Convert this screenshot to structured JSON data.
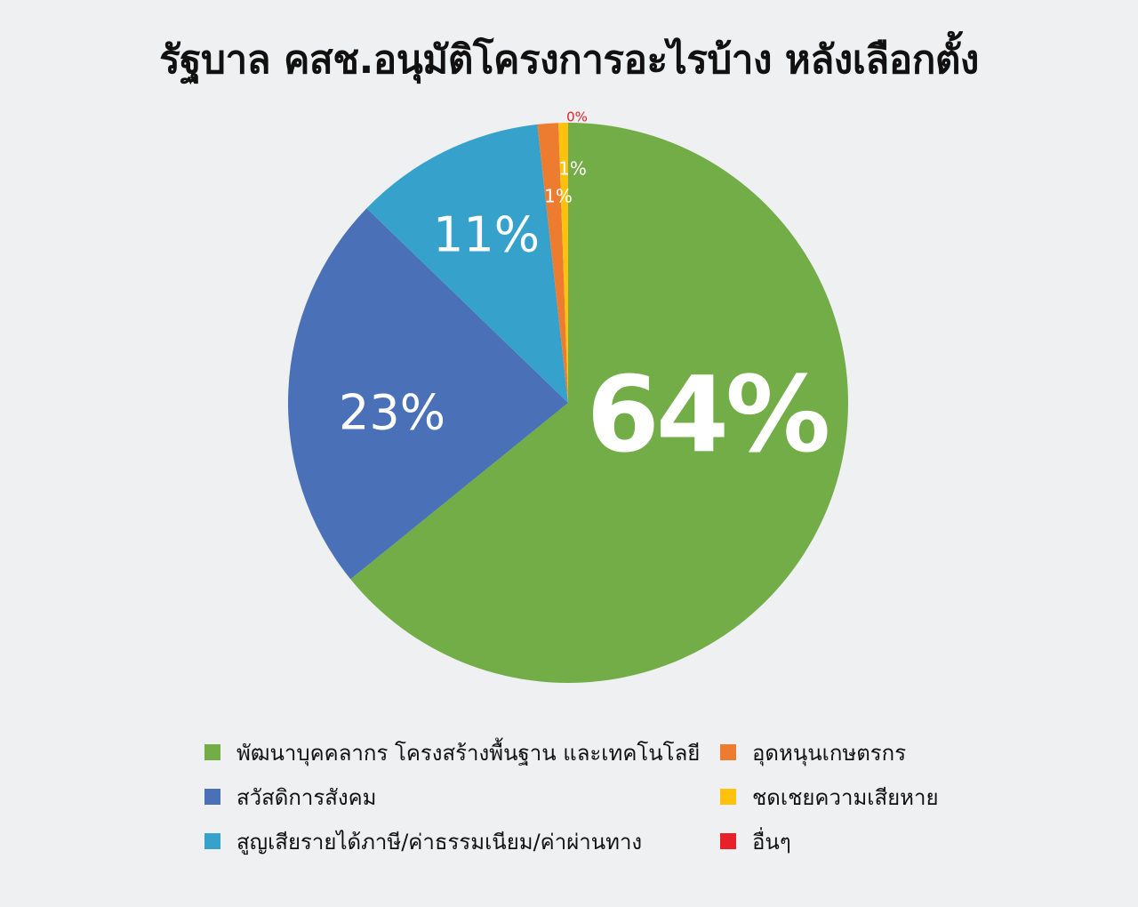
{
  "title": "รัฐบาล คสช.อนุมัติโครงการอะไรบ้าง หลังเลือกตั้ง",
  "chart_data": {
    "type": "pie",
    "title": "รัฐบาล คสช.อนุมัติโครงการอะไรบ้าง หลังเลือกตั้ง",
    "legend_position": "bottom",
    "slices": [
      {
        "name": "พัฒนาบุคคลากร โครงสร้างพื้นฐาน และเทคโนโลยี",
        "value": 64,
        "label": "64%",
        "color": "#72ad47"
      },
      {
        "name": "สวัสดิการสังคม",
        "value": 23,
        "label": "23%",
        "color": "#4a70b7"
      },
      {
        "name": "สูญเสียรายได้ภาษี/ค่าธรรมเนียม/ค่าผ่านทาง",
        "value": 11,
        "label": "11%",
        "color": "#36a2cb"
      },
      {
        "name": "อุดหนุนเกษตรกร",
        "value": 1,
        "label": "1%",
        "color": "#ed7c31"
      },
      {
        "name": "ชดเชยความเสียหาย",
        "value": 1,
        "label": "1%",
        "color": "#fec10d"
      },
      {
        "name": "อื่นๆ",
        "value": 0,
        "label": "0%",
        "color": "#e8202a"
      }
    ]
  }
}
